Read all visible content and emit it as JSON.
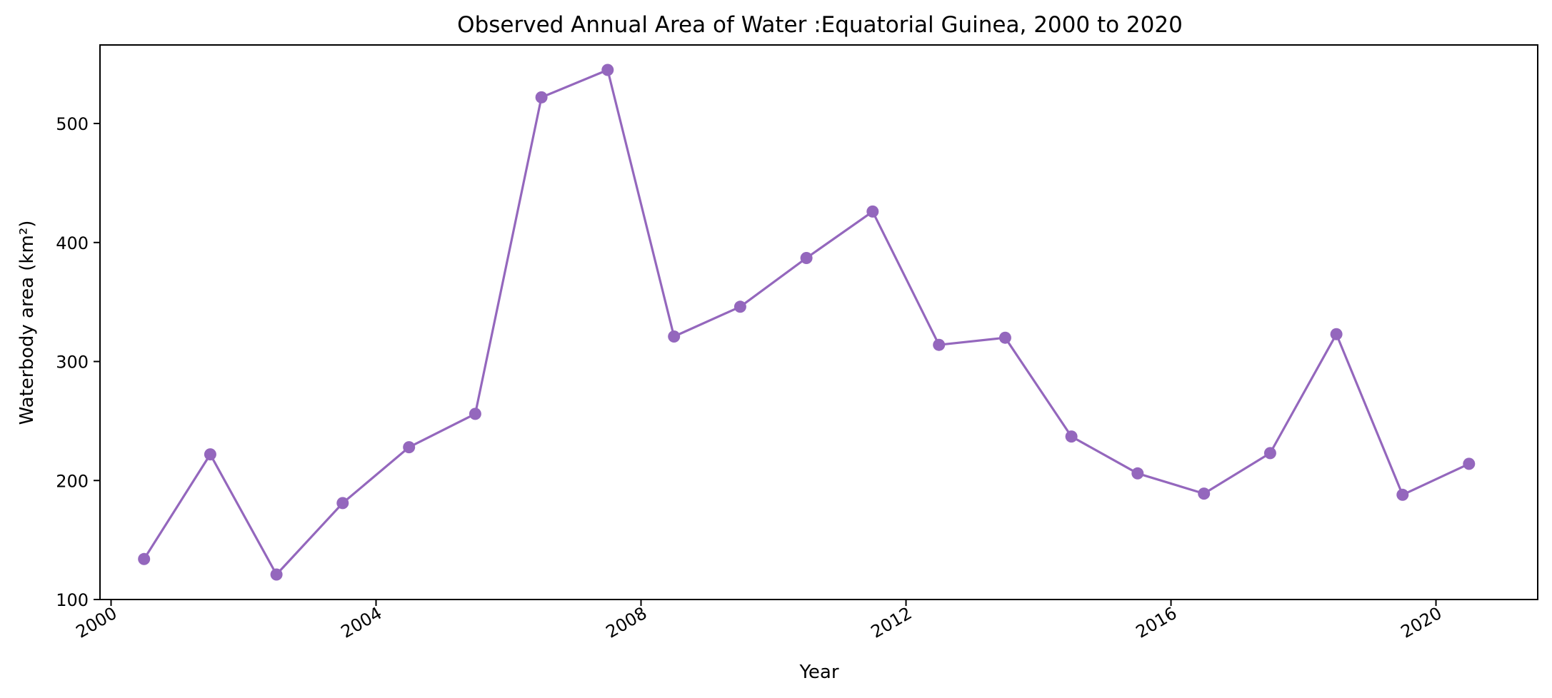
{
  "chart_data": {
    "type": "line",
    "title": "Observed Annual Area of Water :Equatorial Guinea, 2000 to 2020",
    "xlabel": "Year",
    "ylabel": "Waterbody area (km²)",
    "x_ticks": [
      "2000",
      "2004",
      "2008",
      "2012",
      "2016",
      "2020"
    ],
    "y_ticks": [
      100,
      200,
      300,
      400,
      500
    ],
    "xlim": [
      "1999-11-01",
      "2021-07-15"
    ],
    "ylim": [
      100,
      566
    ],
    "grid": false,
    "color": "#9467bd",
    "series": [
      {
        "x": [
          "2000-07-01",
          "2001-07-01",
          "2002-07-01",
          "2003-07-01",
          "2004-07-01",
          "2005-07-01",
          "2006-07-01",
          "2007-07-01",
          "2008-07-01",
          "2009-07-01",
          "2010-07-01",
          "2011-07-01",
          "2012-07-01",
          "2013-07-01",
          "2014-07-01",
          "2015-07-01",
          "2016-07-01",
          "2017-07-01",
          "2018-07-01",
          "2019-07-01",
          "2020-07-01"
        ],
        "values": [
          134,
          222,
          121,
          181,
          228,
          256,
          522,
          545,
          321,
          346,
          387,
          426,
          314,
          320,
          237,
          206,
          189,
          223,
          323,
          188,
          214
        ]
      }
    ]
  }
}
